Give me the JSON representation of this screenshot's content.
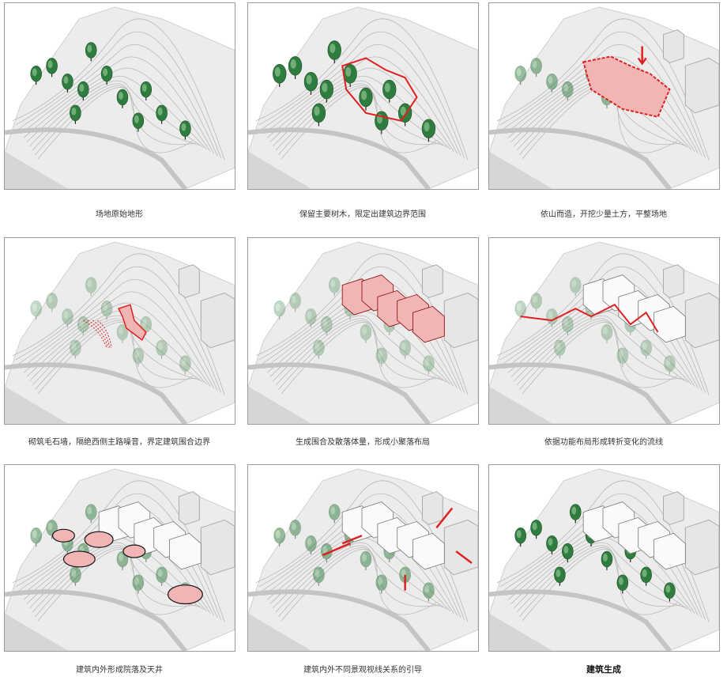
{
  "steps": [
    {
      "caption": "场地原始地形"
    },
    {
      "caption": "保留主要树木，限定出建筑边界范围"
    },
    {
      "caption": "依山而造，开挖少量土方，平整场地"
    },
    {
      "caption": "砌筑毛石墙，隔绝西侧主路噪音，界定建筑围合边界"
    },
    {
      "caption": "生成围合及散落体量，形成小聚落布局"
    },
    {
      "caption": "依据功能布局形成转折变化的流线"
    },
    {
      "caption": "建筑内外形成院落及天井"
    },
    {
      "caption": "建筑内外不同景观视线关系的引导"
    },
    {
      "caption": "建筑生成"
    }
  ],
  "colors": {
    "accent": "#e02020",
    "accent_fill": "#f2b5b5",
    "tree": "#2e7d3e",
    "terrain": "#ececec",
    "contour": "#b8b8b8"
  }
}
